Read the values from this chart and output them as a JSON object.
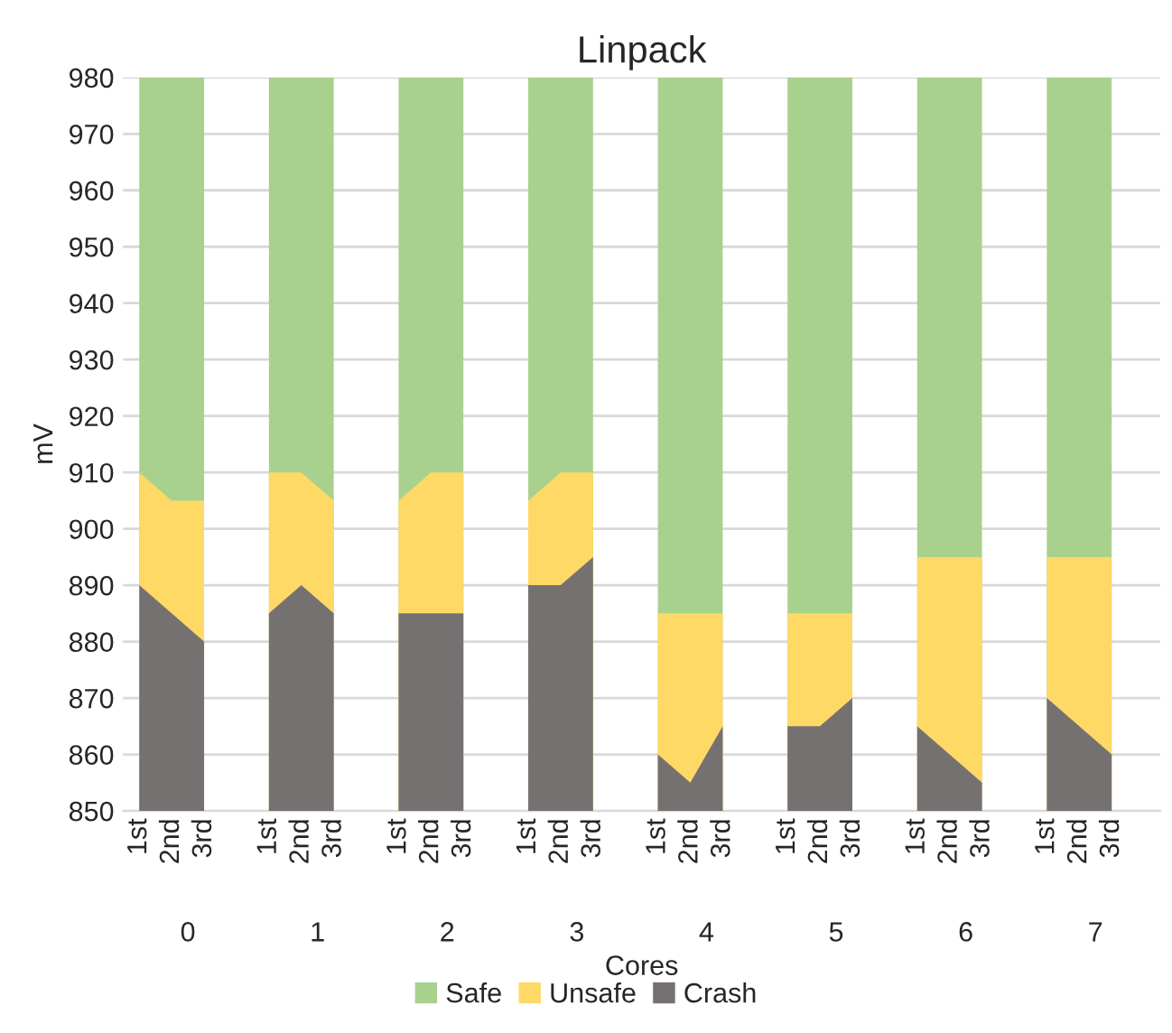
{
  "chart_data": {
    "type": "area",
    "title": "Linpack",
    "xlabel": "Cores",
    "ylabel": "mV",
    "categories": [
      "1st",
      "2nd",
      "3rd",
      null,
      "1st",
      "2nd",
      "3rd",
      null,
      "1st",
      "2nd",
      "3rd",
      null,
      "1st",
      "2nd",
      "3rd",
      null,
      "1st",
      "2nd",
      "3rd",
      null,
      "1st",
      "2nd",
      "3rd",
      null,
      "1st",
      "2nd",
      "3rd",
      null,
      "1st",
      "2nd",
      "3rd",
      null
    ],
    "annotations": [
      "0",
      "1",
      "2",
      "3",
      "4",
      "5",
      "6",
      "7"
    ],
    "series": [
      {
        "name": "Crash",
        "color": "#767171",
        "values": [
          890,
          885,
          880,
          null,
          885,
          890,
          885,
          null,
          885,
          885,
          885,
          null,
          890,
          890,
          895,
          null,
          860,
          855,
          865,
          null,
          865,
          865,
          870,
          null,
          865,
          860,
          855,
          null,
          870,
          865,
          860,
          null
        ]
      },
      {
        "name": "Unsafe",
        "color": "#ffd966",
        "values": [
          910,
          905,
          905,
          null,
          910,
          910,
          905,
          null,
          905,
          910,
          910,
          null,
          905,
          910,
          910,
          null,
          885,
          885,
          885,
          null,
          885,
          885,
          885,
          null,
          895,
          895,
          895,
          null,
          895,
          895,
          895,
          null
        ]
      },
      {
        "name": "Safe",
        "color": "#a9d18e",
        "values": [
          980,
          980,
          980,
          null,
          980,
          980,
          980,
          null,
          980,
          980,
          980,
          null,
          980,
          980,
          980,
          null,
          980,
          980,
          980,
          null,
          980,
          980,
          980,
          null,
          980,
          980,
          980,
          null,
          980,
          980,
          980,
          null
        ]
      }
    ],
    "ylim": [
      850,
      980
    ],
    "yticks": [
      850,
      860,
      870,
      880,
      890,
      900,
      910,
      920,
      930,
      940,
      950,
      960,
      970,
      980
    ],
    "grid": "y",
    "legend": "bottom"
  }
}
